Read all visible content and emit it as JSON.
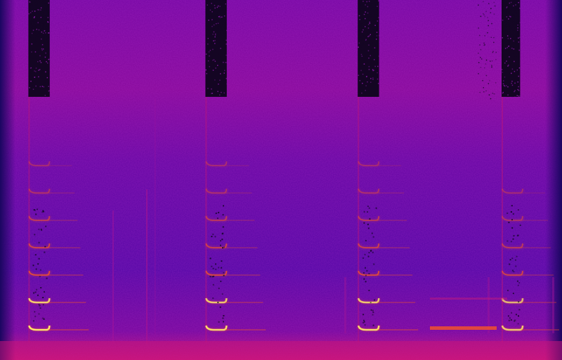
{
  "image": {
    "kind": "spectrogram",
    "colormap": "plasma",
    "colors": {
      "background": "#3c0c96",
      "background_edge": "#22086a",
      "mid_band": "#8c0c9c",
      "high_band": "#6a0aa8",
      "dark_gap": "#0a0418",
      "harmonic": "#ff5a1e",
      "harmonic_hot": "#ffe46a",
      "floor": "#c8147a"
    },
    "events": [
      {
        "onset": 0.068,
        "gap_width": 0.038,
        "harmonics": 7,
        "peak": 1.0
      },
      {
        "onset": 0.383,
        "gap_width": 0.038,
        "harmonics": 7,
        "peak": 0.95
      },
      {
        "onset": 0.654,
        "gap_width": 0.038,
        "harmonics": 7,
        "peak": 0.95
      },
      {
        "onset": 0.91,
        "gap_width": 0.033,
        "harmonics": 6,
        "peak": 0.85
      }
    ]
  }
}
